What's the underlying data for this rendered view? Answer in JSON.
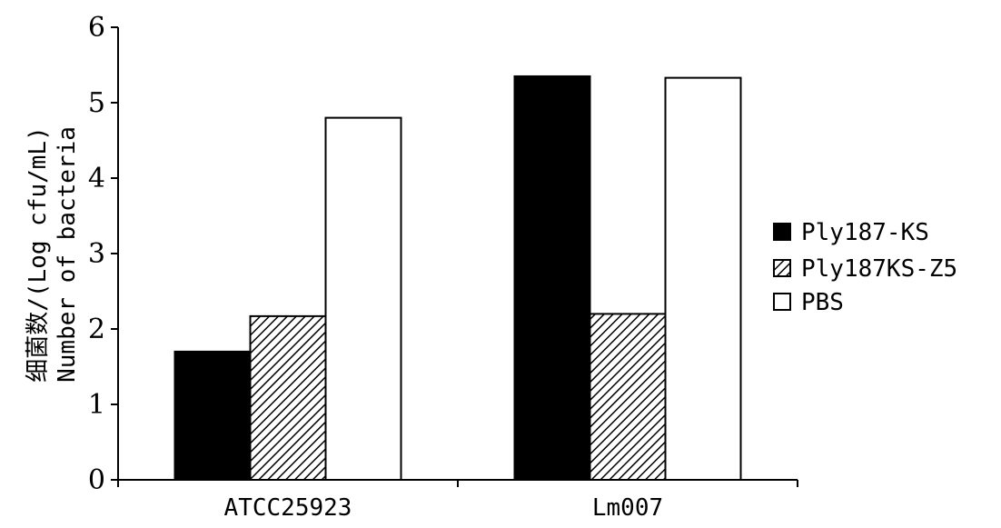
{
  "chart_data": {
    "type": "bar",
    "categories": [
      "ATCC25923",
      "Lm007"
    ],
    "series": [
      {
        "name": "Ply187-KS",
        "values": [
          1.7,
          5.35
        ],
        "fill": "solid-black"
      },
      {
        "name": "Ply187KS-Z5",
        "values": [
          2.17,
          2.2
        ],
        "fill": "diagonal-hatch"
      },
      {
        "name": "PBS",
        "values": [
          4.8,
          5.33
        ],
        "fill": "white"
      }
    ],
    "ylabel_line1": "细菌数/(Log cfu/mL)",
    "ylabel_line2": "Number of bacteria",
    "xlabel": "",
    "ylim": [
      0,
      6
    ],
    "yticks": [
      0,
      1,
      2,
      3,
      4,
      5,
      6
    ],
    "grid": false,
    "legend_position": "right"
  }
}
